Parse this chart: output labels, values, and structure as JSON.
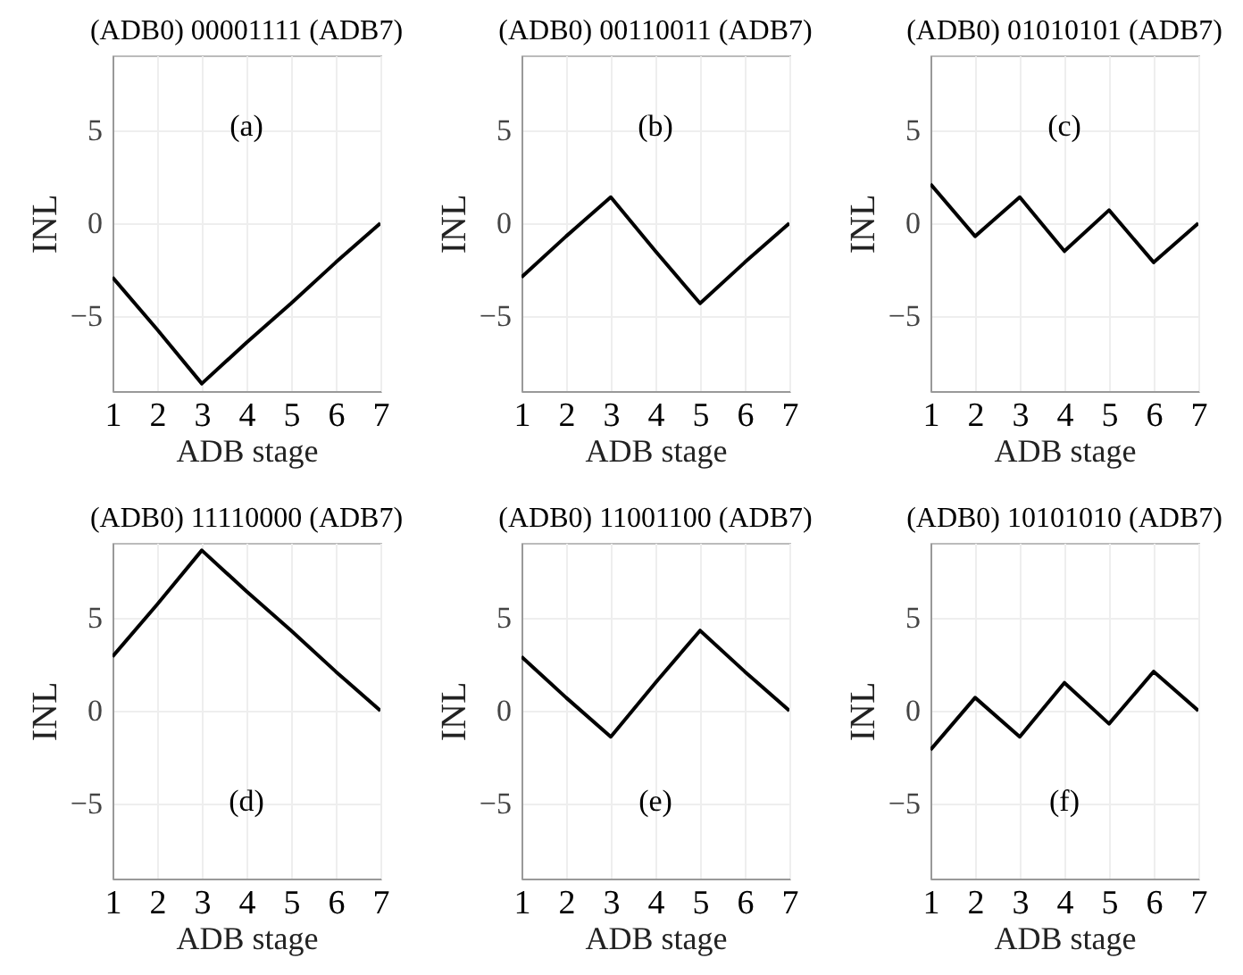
{
  "chart_data": [
    {
      "type": "line",
      "title": "(ADB0) 00001111 (ADB7)",
      "xlabel": "ADB stage",
      "ylabel": "INL",
      "x": [
        1,
        2,
        3,
        4,
        5,
        6,
        7
      ],
      "values": [
        -2.9,
        -5.7,
        -8.6,
        -6.4,
        -4.3,
        -2.1,
        0
      ],
      "color": "#000000",
      "xlim": [
        1,
        7
      ],
      "ylim": [
        -9,
        9
      ],
      "xticks": [
        1,
        2,
        3,
        4,
        5,
        6,
        7
      ],
      "yticks": [
        -5,
        0,
        5
      ],
      "grid": true,
      "annotations": [
        "(a)"
      ]
    },
    {
      "type": "line",
      "title": "(ADB0) 00110011 (ADB7)",
      "xlabel": "ADB stage",
      "ylabel": "INL",
      "x": [
        1,
        2,
        3,
        4,
        5,
        6,
        7
      ],
      "values": [
        -2.9,
        -0.7,
        1.4,
        -1.5,
        -4.3,
        -2.1,
        0
      ],
      "color": "#000000",
      "xlim": [
        1,
        7
      ],
      "ylim": [
        -9,
        9
      ],
      "xticks": [
        1,
        2,
        3,
        4,
        5,
        6,
        7
      ],
      "yticks": [
        -5,
        0,
        5
      ],
      "grid": true,
      "annotations": [
        "(b)"
      ]
    },
    {
      "type": "line",
      "title": "(ADB0) 01010101 (ADB7)",
      "xlabel": "ADB stage",
      "ylabel": "INL",
      "x": [
        1,
        2,
        3,
        4,
        5,
        6,
        7
      ],
      "values": [
        2.1,
        -0.7,
        1.4,
        -1.5,
        0.7,
        -2.1,
        0
      ],
      "color": "#000000",
      "xlim": [
        1,
        7
      ],
      "ylim": [
        -9,
        9
      ],
      "xticks": [
        1,
        2,
        3,
        4,
        5,
        6,
        7
      ],
      "yticks": [
        -5,
        0,
        5
      ],
      "grid": true,
      "annotations": [
        "(c)"
      ]
    },
    {
      "type": "line",
      "title": "(ADB0) 11110000 (ADB7)",
      "xlabel": "ADB stage",
      "ylabel": "INL",
      "x": [
        1,
        2,
        3,
        4,
        5,
        6,
        7
      ],
      "values": [
        2.9,
        5.7,
        8.6,
        6.4,
        4.3,
        2.1,
        0
      ],
      "color": "#000000",
      "xlim": [
        1,
        7
      ],
      "ylim": [
        -9,
        9
      ],
      "xticks": [
        1,
        2,
        3,
        4,
        5,
        6,
        7
      ],
      "yticks": [
        -5,
        0,
        5
      ],
      "grid": true,
      "annotations": [
        "(d)"
      ]
    },
    {
      "type": "line",
      "title": "(ADB0) 11001100 (ADB7)",
      "xlabel": "ADB stage",
      "ylabel": "INL",
      "x": [
        1,
        2,
        3,
        4,
        5,
        6,
        7
      ],
      "values": [
        2.9,
        0.7,
        -1.4,
        1.5,
        4.3,
        2.1,
        0
      ],
      "color": "#000000",
      "xlim": [
        1,
        7
      ],
      "ylim": [
        -9,
        9
      ],
      "xticks": [
        1,
        2,
        3,
        4,
        5,
        6,
        7
      ],
      "yticks": [
        -5,
        0,
        5
      ],
      "grid": true,
      "annotations": [
        "(e)"
      ]
    },
    {
      "type": "line",
      "title": "(ADB0) 10101010 (ADB7)",
      "xlabel": "ADB stage",
      "ylabel": "INL",
      "x": [
        1,
        2,
        3,
        4,
        5,
        6,
        7
      ],
      "values": [
        -2.1,
        0.7,
        -1.4,
        1.5,
        -0.7,
        2.1,
        0
      ],
      "color": "#000000",
      "xlim": [
        1,
        7
      ],
      "ylim": [
        -9,
        9
      ],
      "xticks": [
        1,
        2,
        3,
        4,
        5,
        6,
        7
      ],
      "yticks": [
        -5,
        0,
        5
      ],
      "grid": true,
      "annotations": [
        "(f)"
      ]
    }
  ]
}
